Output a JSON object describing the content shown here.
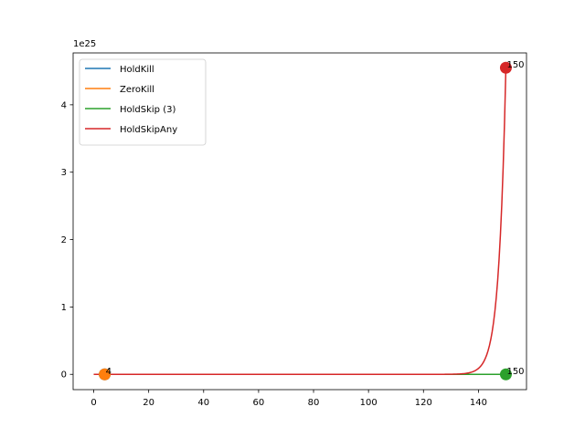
{
  "chart_data": {
    "type": "line",
    "title": "",
    "xlabel": "",
    "ylabel": "",
    "y_offset_text": "1e25",
    "xlim": [
      -7.5,
      157.5
    ],
    "ylim": [
      -0.227,
      4.77
    ],
    "y_scale_factor": 1e+25,
    "xticks": [
      0,
      20,
      40,
      60,
      80,
      100,
      120,
      140
    ],
    "yticks": [
      0,
      1,
      2,
      3,
      4
    ],
    "grid": false,
    "legend": "upper left",
    "series": [
      {
        "name": "HoldKill",
        "color": "#1f77b4",
        "curve": "zero",
        "x_range": [
          0,
          4
        ],
        "end_point": {
          "x": 4,
          "y": 0
        },
        "end_label": "4"
      },
      {
        "name": "ZeroKill",
        "color": "#ff7f0e",
        "curve": "zero",
        "x_range": [
          0,
          4
        ],
        "end_point": {
          "x": 4,
          "y": 0
        },
        "end_label": "4"
      },
      {
        "name": "HoldSkip (3)",
        "color": "#2ca02c",
        "curve": "zero",
        "x_range": [
          0,
          150
        ],
        "end_point": {
          "x": 150,
          "y": 0
        },
        "end_label": "150"
      },
      {
        "name": "HoldSkipAny",
        "color": "#d62728",
        "curve": "exponential",
        "x_range": [
          0,
          150
        ],
        "growth_rate": 0.395,
        "end_point": {
          "x": 150,
          "y": 4.55
        },
        "end_label": "150"
      }
    ]
  }
}
